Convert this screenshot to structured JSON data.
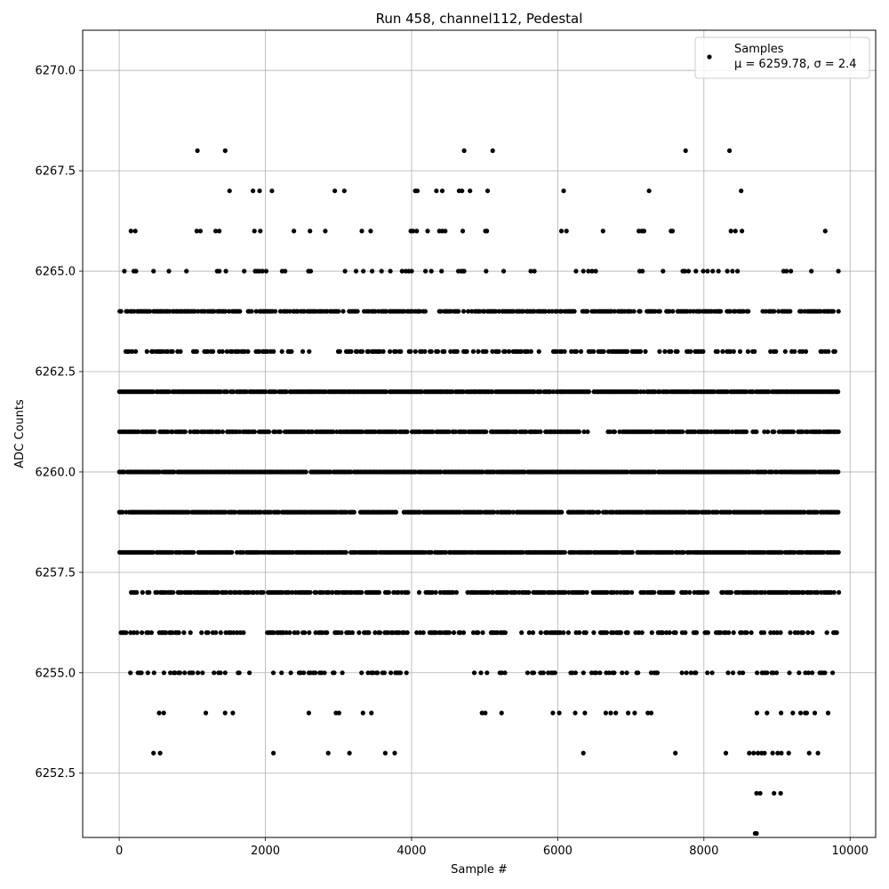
{
  "chart_data": {
    "type": "scatter",
    "title": "Run 458, channel112, Pedestal",
    "xlabel": "Sample #",
    "ylabel": "ADC Counts",
    "xlim": [
      -500,
      10350
    ],
    "ylim": [
      6250.9,
      6271.0
    ],
    "x_ticks": [
      0,
      2000,
      4000,
      6000,
      8000,
      10000
    ],
    "x_tick_labels": [
      "0",
      "2000",
      "4000",
      "6000",
      "8000",
      "10000"
    ],
    "y_ticks": [
      6252.5,
      6255.0,
      6257.5,
      6260.0,
      6262.5,
      6265.0,
      6267.5,
      6270.0
    ],
    "y_tick_labels": [
      "6252.5",
      "6255.0",
      "6257.5",
      "6260.0",
      "6262.5",
      "6265.0",
      "6267.5",
      "6270.0"
    ],
    "grid": true,
    "legend_position": "top-right",
    "marker_color": "#000000",
    "series": [
      {
        "name": "Samples",
        "values_note": "",
        "color": "#000000"
      }
    ],
    "legend_entries": [
      "Samples",
      "μ = 6259.78, σ = 2.4"
    ],
    "levels": [
      {
        "y": 6269,
        "x": []
      },
      {
        "y": 6268,
        "x": [
          1070,
          1450,
          4720,
          5110,
          7750,
          8350
        ]
      },
      {
        "y": 6267,
        "x": [
          1510,
          1830,
          1920,
          2090,
          2950,
          3080,
          4050,
          4080,
          4340,
          4420,
          4650,
          4690,
          4800,
          5040,
          6080,
          7250,
          8510
        ]
      },
      {
        "y": 6266,
        "x": [
          160,
          220,
          1060,
          1110,
          1320,
          1370,
          1850,
          1930,
          2390,
          2610,
          2820,
          3320,
          3440,
          3990,
          4020,
          4070,
          4220,
          4380,
          4420,
          4460,
          4700,
          5010,
          5030,
          6050,
          6120,
          6620,
          7110,
          7150,
          7180,
          7550,
          7570,
          8370,
          8430,
          8520,
          9660
        ]
      },
      {
        "y": 6265,
        "x": [
          70,
          200,
          230,
          470,
          680,
          920,
          1340,
          1370,
          1460,
          1710,
          1860,
          1890,
          1920,
          1960,
          2010,
          2230,
          2270,
          2590,
          2620,
          3090,
          3240,
          3340,
          3460,
          3590,
          3710,
          3870,
          3920,
          3960,
          4000,
          4190,
          4270,
          4410,
          4640,
          4680,
          4700,
          4720,
          5020,
          5260,
          5630,
          5680,
          6250,
          6350,
          6420,
          6470,
          6520,
          7120,
          7160,
          7440,
          7710,
          7740,
          7790,
          7890,
          7990,
          8050,
          8120,
          8200,
          8320,
          8390,
          8460,
          9090,
          9130,
          9190,
          9470,
          9840
        ]
      },
      {
        "y": 6253,
        "x": [
          470,
          560,
          2110,
          2860,
          3150,
          3640,
          3770,
          6350,
          7610,
          8300,
          8620,
          8680,
          8740,
          8790,
          8830,
          8940,
          9010,
          9060,
          9160,
          9440,
          9560
        ]
      },
      {
        "y": 6252,
        "x": [
          8720,
          8770,
          8960,
          9050
        ]
      },
      {
        "y": 6251,
        "x": [
          8700,
          8720
        ]
      }
    ],
    "dense_levels": [
      {
        "y": 6264,
        "from": 0,
        "to": 9850,
        "density": 0.7,
        "gaps": [
          [
            1660,
            1740
          ],
          [
            3060,
            3120
          ],
          [
            6250,
            6330
          ],
          [
            9240,
            9290
          ],
          [
            8630,
            8780
          ]
        ]
      },
      {
        "y": 6263,
        "from": 0,
        "to": 9820,
        "density": 0.48,
        "gaps": [
          [
            2640,
            2940
          ],
          [
            3040,
            3100
          ],
          [
            7200,
            7220
          ],
          [
            8700,
            8900
          ],
          [
            9400,
            9490
          ]
        ]
      },
      {
        "y": 6262,
        "from": 0,
        "to": 9850,
        "density": 0.92,
        "gaps": []
      },
      {
        "y": 6261,
        "from": 0,
        "to": 9850,
        "density": 0.85,
        "gaps": [
          [
            6420,
            6680
          ],
          [
            8600,
            8660
          ],
          [
            8720,
            8800
          ]
        ]
      },
      {
        "y": 6260,
        "from": 0,
        "to": 9850,
        "density": 0.95,
        "gaps": []
      },
      {
        "y": 6259,
        "from": 0,
        "to": 9850,
        "density": 0.93,
        "gaps": [
          [
            3800,
            3880
          ],
          [
            6560,
            6600
          ]
        ]
      },
      {
        "y": 6258,
        "from": 0,
        "to": 9850,
        "density": 0.9,
        "gaps": []
      },
      {
        "y": 6257,
        "from": 120,
        "to": 9850,
        "density": 0.7,
        "gaps": [
          [
            3980,
            4100
          ],
          [
            4620,
            4740
          ],
          [
            5600,
            5660
          ],
          [
            7010,
            7100
          ],
          [
            8070,
            8220
          ]
        ]
      },
      {
        "y": 6256,
        "from": 0,
        "to": 9820,
        "density": 0.48,
        "gaps": [
          [
            1750,
            1960
          ],
          [
            4720,
            4830
          ],
          [
            5310,
            5400
          ],
          [
            7170,
            7270
          ],
          [
            7930,
            8000
          ]
        ]
      },
      {
        "y": 6255,
        "from": 80,
        "to": 9780,
        "density": 0.32,
        "gaps": [
          [
            1790,
            1960
          ],
          [
            3980,
            4250
          ],
          [
            4340,
            4840
          ],
          [
            5440,
            5560
          ],
          [
            7100,
            7240
          ],
          [
            7450,
            7690
          ],
          [
            8120,
            8290
          ]
        ]
      },
      {
        "y": 6254,
        "from": 320,
        "to": 9840,
        "density": 0.13,
        "gaps": [
          [
            1700,
            2080
          ],
          [
            3680,
            4860
          ],
          [
            5360,
            5570
          ],
          [
            7400,
            7580
          ],
          [
            7950,
            8650
          ]
        ]
      }
    ]
  }
}
